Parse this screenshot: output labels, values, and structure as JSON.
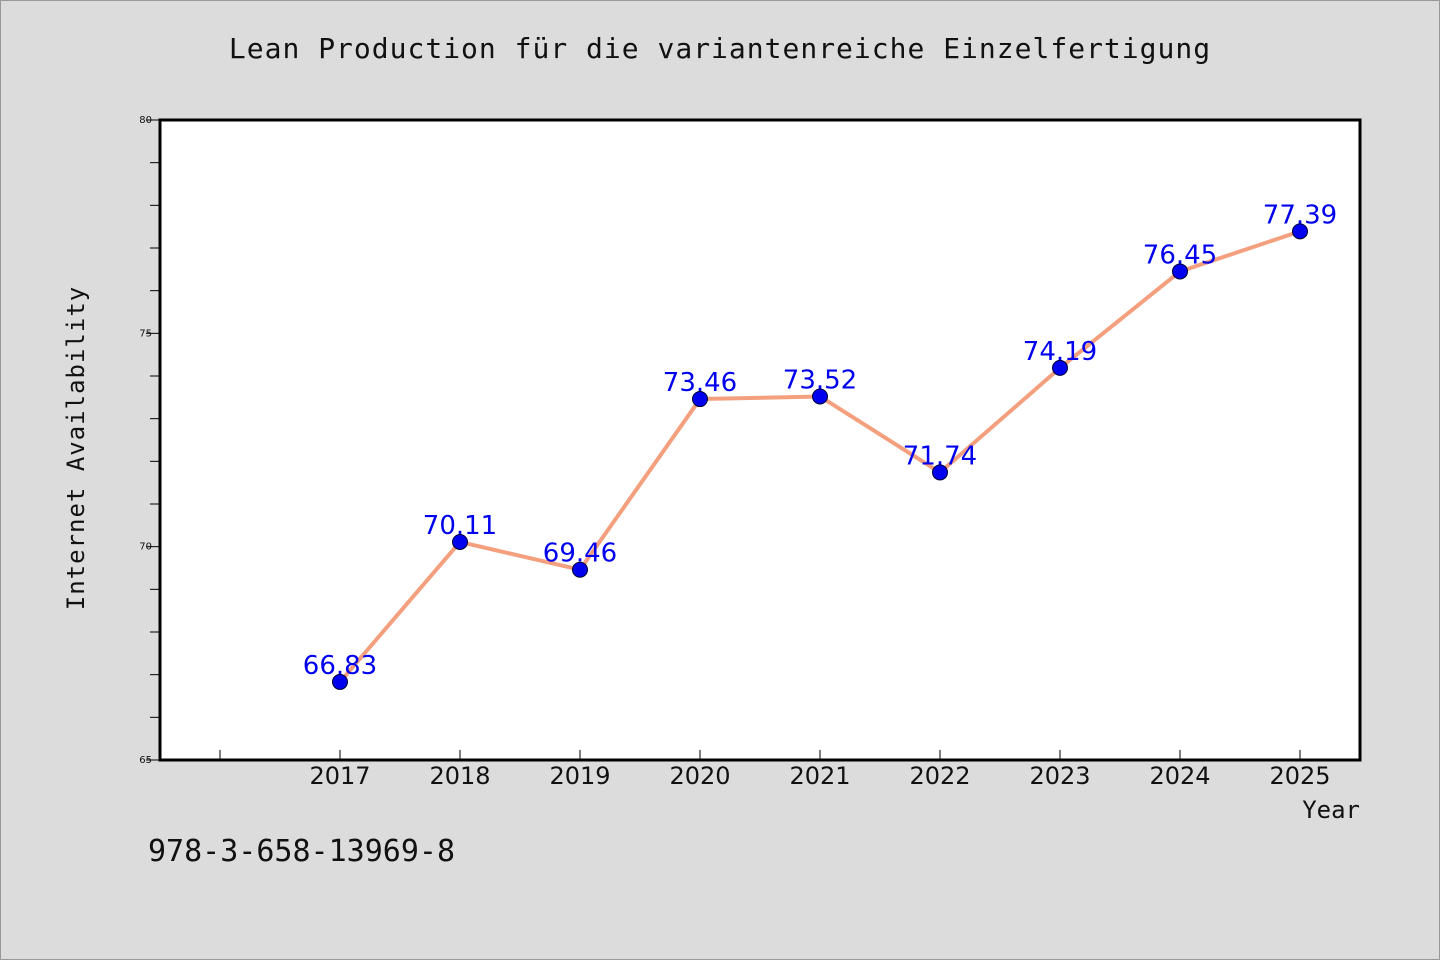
{
  "chart_data": {
    "type": "line",
    "title": "Lean Production für die variantenreiche Einzelfertigung",
    "xlabel": "Year",
    "ylabel": "Internet Availability",
    "x": [
      "2017",
      "2018",
      "2019",
      "2020",
      "2021",
      "2022",
      "2023",
      "2024",
      "2025"
    ],
    "series": [
      {
        "values": [
          66.83,
          70.11,
          69.46,
          73.46,
          73.52,
          71.74,
          74.19,
          76.45,
          77.39
        ],
        "labels": [
          "66.83",
          "70.11",
          "69.46",
          "73.46",
          "73.52",
          "71.74",
          "74.19",
          "76.45",
          "77.39"
        ],
        "line_color": "#f4a07e",
        "marker_color": "#0000ee"
      }
    ],
    "ylim": [
      65,
      80
    ],
    "y_ticks": [
      "65",
      "70",
      "75",
      "80"
    ],
    "grid": false,
    "legend": "none"
  },
  "footer": {
    "isbn": "978-3-658-13969-8"
  }
}
